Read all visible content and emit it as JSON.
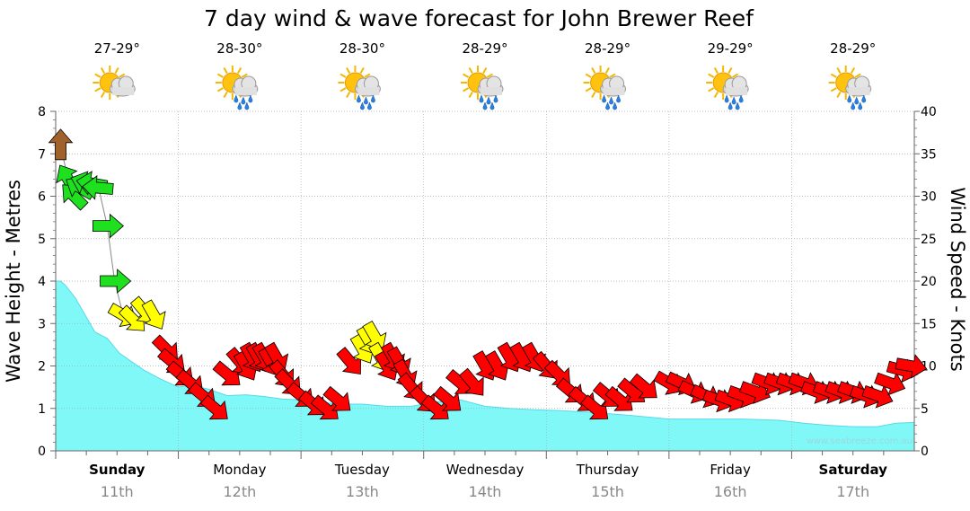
{
  "chart_data": {
    "type": "area",
    "title": "7 day wind & wave forecast for John Brewer Reef",
    "ylabel": "Wave Height - Metres",
    "y2label": "Wind Speed - Knots",
    "ylim": [
      0,
      8
    ],
    "y2lim": [
      0,
      40
    ],
    "yticks": [
      "0",
      "1",
      "2",
      "3",
      "4",
      "5",
      "6",
      "7",
      "8"
    ],
    "y2ticks": [
      "0",
      "5",
      "10",
      "15",
      "20",
      "25",
      "30",
      "35",
      "40"
    ],
    "grid": true,
    "days": [
      {
        "name": "Sunday",
        "date": "11th",
        "bold": true,
        "temp": "27-29°",
        "weather": "partly-cloudy"
      },
      {
        "name": "Monday",
        "date": "12th",
        "bold": false,
        "temp": "28-30°",
        "weather": "showers"
      },
      {
        "name": "Tuesday",
        "date": "13th",
        "bold": false,
        "temp": "28-30°",
        "weather": "showers"
      },
      {
        "name": "Wednesday",
        "date": "14th",
        "bold": false,
        "temp": "28-29°",
        "weather": "showers"
      },
      {
        "name": "Thursday",
        "date": "15th",
        "bold": false,
        "temp": "28-29°",
        "weather": "showers"
      },
      {
        "name": "Friday",
        "date": "16th",
        "bold": false,
        "temp": "29-29°",
        "weather": "showers"
      },
      {
        "name": "Saturday",
        "date": "17th",
        "bold": true,
        "temp": "28-29°",
        "weather": "showers"
      }
    ],
    "wave_series": {
      "name": "Wave Height",
      "color": "#80f8f8",
      "x": [
        0,
        0.04,
        0.08,
        0.16,
        0.24,
        0.32,
        0.42,
        0.52,
        0.62,
        0.72,
        0.85,
        1.0,
        1.1,
        1.25,
        1.4,
        1.55,
        1.7,
        1.85,
        2.0,
        2.15,
        2.3,
        2.5,
        2.7,
        2.9,
        3.1,
        3.3,
        3.5,
        3.7,
        3.9,
        4.1,
        4.4,
        4.7,
        5.0,
        5.3,
        5.6,
        5.9,
        6.1,
        6.3,
        6.5,
        6.7,
        6.85,
        7.0
      ],
      "values": [
        4.0,
        4.0,
        3.9,
        3.6,
        3.2,
        2.8,
        2.65,
        2.3,
        2.1,
        1.9,
        1.7,
        1.5,
        1.55,
        1.45,
        1.3,
        1.32,
        1.28,
        1.22,
        1.2,
        1.15,
        1.1,
        1.1,
        1.05,
        1.05,
        1.15,
        1.2,
        1.05,
        1.0,
        0.97,
        0.95,
        0.9,
        0.83,
        0.75,
        0.75,
        0.75,
        0.72,
        0.65,
        0.6,
        0.57,
        0.57,
        0.65,
        0.67
      ]
    },
    "wind_series": {
      "name": "Wind Speed",
      "x": [
        0.04,
        0.1,
        0.15,
        0.2,
        0.25,
        0.3,
        0.35,
        0.42,
        0.48,
        0.55,
        0.63,
        0.72,
        0.8,
        0.9,
        0.95,
        1.02,
        1.1,
        1.2,
        1.3,
        1.4,
        1.5,
        1.55,
        1.6,
        1.65,
        1.7,
        1.75,
        1.8,
        1.85,
        1.9,
        2.0,
        2.1,
        2.2,
        2.3,
        2.4,
        2.5,
        2.55,
        2.6,
        2.65,
        2.7,
        2.75,
        2.8,
        2.85,
        2.9,
        3.0,
        3.1,
        3.2,
        3.3,
        3.4,
        3.5,
        3.6,
        3.7,
        3.8,
        3.9,
        4.0,
        4.1,
        4.2,
        4.3,
        4.4,
        4.5,
        4.6,
        4.7,
        4.8,
        5.0,
        5.1,
        5.2,
        5.3,
        5.4,
        5.5,
        5.6,
        5.7,
        5.8,
        5.9,
        6.0,
        6.1,
        6.2,
        6.3,
        6.4,
        6.5,
        6.6,
        6.7,
        6.8,
        6.9,
        6.97
      ],
      "values": [
        36,
        32,
        30,
        31,
        31.5,
        31.5,
        31,
        26.5,
        20,
        16,
        15.5,
        16.5,
        16,
        12,
        10.5,
        9,
        8,
        6.5,
        5,
        9,
        10.5,
        10,
        11,
        11,
        11,
        10.5,
        11,
        9,
        8,
        6.5,
        5.5,
        5,
        6,
        10.5,
        12,
        13,
        13.5,
        11,
        10,
        11,
        10.5,
        9,
        7.5,
        6,
        5,
        6,
        8,
        8,
        10,
        10,
        11,
        11,
        11,
        10,
        9,
        7,
        6,
        5,
        6.5,
        6,
        7,
        7.5,
        8,
        8,
        7,
        6.5,
        6,
        6,
        6.5,
        7,
        8,
        8,
        8,
        8,
        7,
        7,
        7,
        7,
        6.5,
        6.5,
        8,
        9.5,
        10
      ],
      "colors": [
        "#a0622a",
        "#1fe01f",
        "#1fe01f",
        "#1fe01f",
        "#1fe01f",
        "#1fe01f",
        "#1fe01f",
        "#1fe01f",
        "#1fe01f",
        "#ffff00",
        "#ffff00",
        "#ffff00",
        "#ffff00",
        "#ff0000",
        "#ff0000",
        "#ff0000",
        "#ff0000",
        "#ff0000",
        "#ff0000",
        "#ff0000",
        "#ff0000",
        "#ff0000",
        "#ff0000",
        "#ff0000",
        "#ff0000",
        "#ff0000",
        "#ff0000",
        "#ff0000",
        "#ff0000",
        "#ff0000",
        "#ff0000",
        "#ff0000",
        "#ff0000",
        "#ff0000",
        "#ffff00",
        "#ffff00",
        "#ffff00",
        "#ffff00",
        "#ff0000",
        "#ff0000",
        "#ff0000",
        "#ff0000",
        "#ff0000",
        "#ff0000",
        "#ff0000",
        "#ff0000",
        "#ff0000",
        "#ff0000",
        "#ff0000",
        "#ff0000",
        "#ff0000",
        "#ff0000",
        "#ff0000",
        "#ff0000",
        "#ff0000",
        "#ff0000",
        "#ff0000",
        "#ff0000",
        "#ff0000",
        "#ff0000",
        "#ff0000",
        "#ff0000",
        "#ff0000",
        "#ff0000",
        "#ff0000",
        "#ff0000",
        "#ff0000",
        "#ff0000",
        "#ff0000",
        "#ff0000",
        "#ff0000",
        "#ff0000",
        "#ff0000",
        "#ff0000",
        "#ff0000",
        "#ff0000",
        "#ff0000",
        "#ff0000",
        "#ff0000",
        "#ff0000",
        "#ff0000",
        "#ff0000",
        "#ff0000"
      ],
      "directions_deg": [
        0,
        330,
        315,
        300,
        290,
        280,
        275,
        90,
        90,
        120,
        135,
        140,
        150,
        135,
        130,
        130,
        130,
        130,
        130,
        130,
        140,
        150,
        150,
        150,
        150,
        150,
        150,
        140,
        135,
        130,
        130,
        130,
        130,
        140,
        150,
        150,
        150,
        150,
        150,
        150,
        150,
        150,
        140,
        135,
        130,
        130,
        130,
        140,
        150,
        150,
        150,
        150,
        150,
        140,
        135,
        130,
        130,
        130,
        130,
        130,
        130,
        130,
        120,
        115,
        115,
        115,
        110,
        110,
        110,
        110,
        110,
        110,
        110,
        110,
        110,
        110,
        110,
        110,
        110,
        110,
        110,
        105,
        100
      ]
    },
    "watermark": "www.seabreeze.com.au"
  }
}
